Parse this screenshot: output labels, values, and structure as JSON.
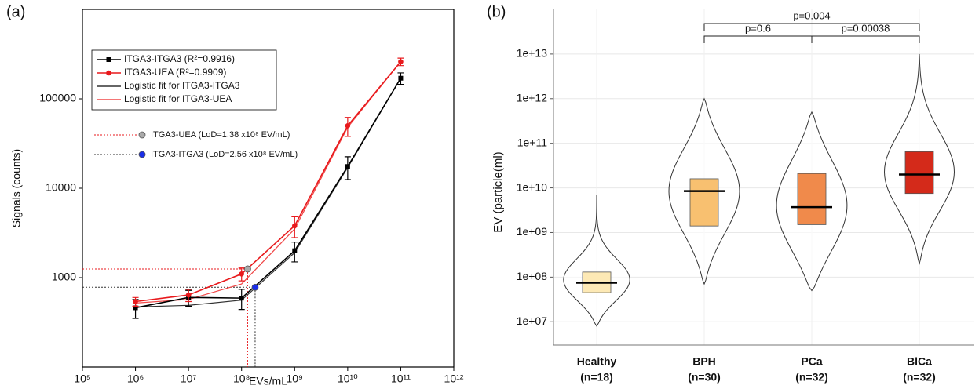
{
  "chart_data": [
    {
      "type": "line",
      "panel_label": "(a)",
      "xlabel": "EVs/mL",
      "ylabel": "Signals (counts)",
      "log_x": true,
      "log_y": true,
      "xlim": [
        100000,
        1000000000000
      ],
      "ylim": [
        100,
        1000000
      ],
      "xticks": [
        {
          "value": 100000,
          "label": "10⁵"
        },
        {
          "value": 1000000,
          "label": "10⁶"
        },
        {
          "value": 10000000,
          "label": "10⁷"
        },
        {
          "value": 100000000,
          "label": "10⁸"
        },
        {
          "value": 1000000000,
          "label": "10⁹"
        },
        {
          "value": 10000000000,
          "label": "10¹⁰"
        },
        {
          "value": 100000000000,
          "label": "10¹¹"
        },
        {
          "value": 1000000000000,
          "label": "10¹²"
        }
      ],
      "yticks": [
        1000,
        10000,
        100000
      ],
      "x": [
        1000000,
        10000000,
        100000000,
        1000000000,
        10000000000,
        100000000000
      ],
      "series": [
        {
          "name": "Logistic fit for ITGA3-ITGA3",
          "color": "#333333",
          "values": [
            470,
            490,
            560,
            1900,
            17000,
            170000
          ]
        },
        {
          "name": "Logistic fit for ITGA3-UEA",
          "color": "#f04848",
          "values": [
            520,
            570,
            850,
            3500,
            48000,
            260000
          ]
        },
        {
          "name": "ITGA3-ITGA3 (R²=0.9916)",
          "color": "#000000",
          "marker": "square",
          "values": [
            460,
            600,
            590,
            2000,
            17500,
            170000
          ],
          "errors": [
            110,
            120,
            150,
            500,
            5000,
            25000
          ]
        },
        {
          "name": "ITGA3-UEA (R²=0.9909)",
          "color": "#e8191c",
          "marker": "circle",
          "values": [
            540,
            640,
            1100,
            3800,
            50000,
            260000
          ],
          "errors": [
            60,
            100,
            180,
            1000,
            12000,
            25000
          ]
        }
      ],
      "lod": [
        {
          "name": "ITGA3-UEA (LoD=1.38 x10⁸ EV/mL)",
          "x": 130000000,
          "y": 1250,
          "color": "#aaaaaa",
          "line_color": "#e8191c"
        },
        {
          "name": "ITGA3-ITGA3 (LoD=2.56 x10⁸ EV/mL)",
          "x": 180000000,
          "y": 780,
          "color": "#1a2ee8",
          "line_color": "#333333"
        }
      ]
    },
    {
      "type": "violin",
      "panel_label": "(b)",
      "ylabel": "EV (particle(ml)",
      "log_y": true,
      "grid": true,
      "ylim": [
        3000000,
        100000000000000
      ],
      "yticks": [
        {
          "value": 10000000,
          "label": "1e+07"
        },
        {
          "value": 100000000,
          "label": "1e+08"
        },
        {
          "value": 1000000000,
          "label": "1e+09"
        },
        {
          "value": 10000000000,
          "label": "1e+10"
        },
        {
          "value": 100000000000,
          "label": "1e+11"
        },
        {
          "value": 1000000000000,
          "label": "1e+12"
        },
        {
          "value": 10000000000000,
          "label": "1e+13"
        }
      ],
      "categories": [
        "Healthy",
        "BPH",
        "PCa",
        "BlCa"
      ],
      "category_notes": [
        "(n=18)",
        "(n=30)",
        "(n=32)",
        "(n=32)"
      ],
      "groups": [
        {
          "color": "#fde9b5",
          "min": 8000000,
          "q1": 45000000,
          "median": 75000000,
          "q3": 130000000,
          "max": 7000000000
        },
        {
          "color": "#f8c070",
          "min": 70000000,
          "q1": 1400000000,
          "median": 8500000000,
          "q3": 16000000000,
          "max": 1000000000000
        },
        {
          "color": "#f08a4b",
          "min": 50000000,
          "q1": 1500000000,
          "median": 3700000000,
          "q3": 21000000000,
          "max": 500000000000
        },
        {
          "color": "#d42a1a",
          "min": 200000000,
          "q1": 7500000000,
          "median": 20000000000,
          "q3": 65000000000,
          "max": 10000000000000
        }
      ],
      "comparisons": [
        {
          "groups": [
            "BPH",
            "PCa"
          ],
          "text": "p=0.6"
        },
        {
          "groups": [
            "PCa",
            "BlCa"
          ],
          "text": "p=0.00038"
        },
        {
          "groups": [
            "BPH",
            "BlCa"
          ],
          "text": "p=0.004"
        }
      ]
    }
  ]
}
